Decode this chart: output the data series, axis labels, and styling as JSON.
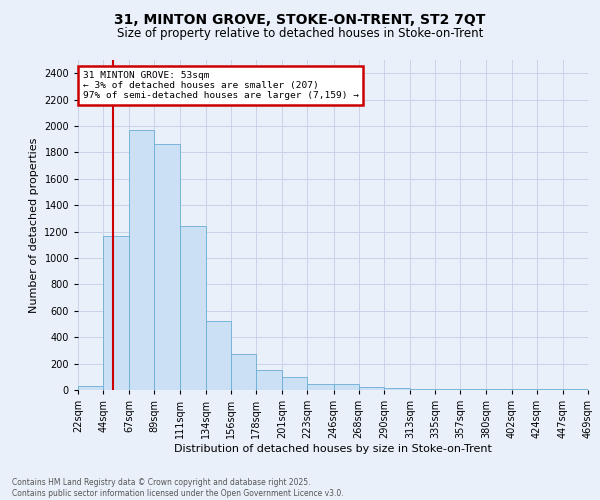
{
  "title1": "31, MINTON GROVE, STOKE-ON-TRENT, ST2 7QT",
  "title2": "Size of property relative to detached houses in Stoke-on-Trent",
  "xlabel": "Distribution of detached houses by size in Stoke-on-Trent",
  "ylabel": "Number of detached properties",
  "bar_color": "#cce0f5",
  "bar_edge_color": "#6aaed6",
  "red_line_x": 53,
  "annotation_text": "31 MINTON GROVE: 53sqm\n← 3% of detached houses are smaller (207)\n97% of semi-detached houses are larger (7,159) →",
  "annotation_box_color": "white",
  "annotation_edge_color": "#cc0000",
  "grid_color": "#c8d4e8",
  "background_color": "#eaf0fa",
  "footer_text": "Contains HM Land Registry data © Crown copyright and database right 2025.\nContains public sector information licensed under the Open Government Licence v3.0.",
  "bin_edges": [
    22,
    44,
    67,
    89,
    111,
    134,
    156,
    178,
    201,
    223,
    246,
    268,
    290,
    313,
    335,
    357,
    380,
    402,
    424,
    447,
    469
  ],
  "bar_heights": [
    30,
    1170,
    1970,
    1860,
    1240,
    520,
    275,
    155,
    95,
    45,
    45,
    20,
    15,
    10,
    5,
    5,
    5,
    5,
    5,
    5,
    15
  ],
  "tick_labels": [
    "22sqm",
    "44sqm",
    "67sqm",
    "89sqm",
    "111sqm",
    "134sqm",
    "156sqm",
    "178sqm",
    "201sqm",
    "223sqm",
    "246sqm",
    "268sqm",
    "290sqm",
    "313sqm",
    "335sqm",
    "357sqm",
    "380sqm",
    "402sqm",
    "424sqm",
    "447sqm",
    "469sqm"
  ],
  "ylim": [
    0,
    2500
  ],
  "yticks": [
    0,
    200,
    400,
    600,
    800,
    1000,
    1200,
    1400,
    1600,
    1800,
    2000,
    2200,
    2400
  ],
  "red_line_color": "#cc0000",
  "title1_fontsize": 10,
  "title2_fontsize": 8.5,
  "ylabel_fontsize": 8,
  "xlabel_fontsize": 8,
  "tick_fontsize": 7,
  "footer_fontsize": 5.5
}
